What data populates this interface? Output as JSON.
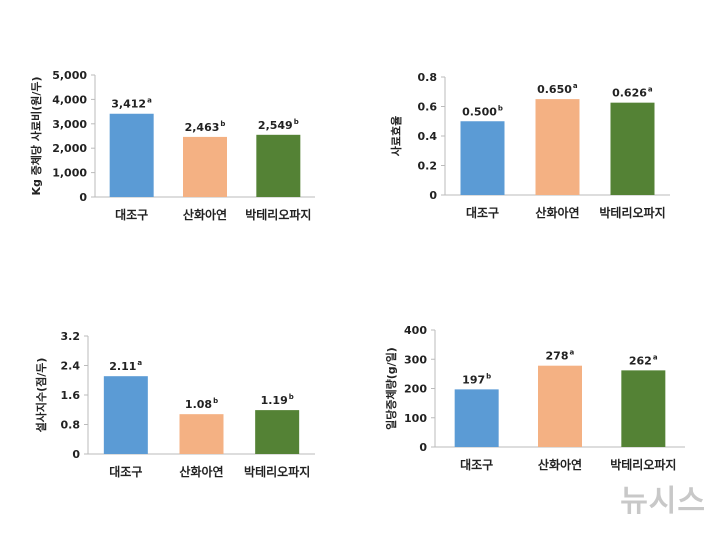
{
  "chart_data": [
    {
      "type": "bar",
      "ylabel": "Kg 증체당 사료비(원/두)",
      "categories": [
        "대조구",
        "산화아연",
        "박테리오파지"
      ],
      "values": [
        3412,
        2463,
        2549
      ],
      "value_labels": [
        "3,412",
        "2,463",
        "2,549"
      ],
      "superscripts": [
        "a",
        "b",
        "b"
      ],
      "ylim": [
        0,
        5000
      ],
      "yticks": [
        0,
        1000,
        2000,
        3000,
        4000,
        5000
      ],
      "ytick_labels": [
        "0",
        "1,000",
        "2,000",
        "3,000",
        "4,000",
        "5,000"
      ],
      "colors": [
        "#5b9bd5",
        "#f4b183",
        "#548235"
      ]
    },
    {
      "type": "bar",
      "ylabel": "사료효율",
      "categories": [
        "대조구",
        "산화아연",
        "박테리오파지"
      ],
      "values": [
        0.5,
        0.65,
        0.626
      ],
      "value_labels": [
        "0.500",
        "0.650",
        "0.626"
      ],
      "superscripts": [
        "b",
        "a",
        "a"
      ],
      "ylim": [
        0,
        0.8
      ],
      "yticks": [
        0,
        0.2,
        0.4,
        0.6,
        0.8
      ],
      "ytick_labels": [
        "0",
        "0.2",
        "0.4",
        "0.6",
        "0.8"
      ],
      "colors": [
        "#5b9bd5",
        "#f4b183",
        "#548235"
      ]
    },
    {
      "type": "bar",
      "ylabel": "설사지수(점/두)",
      "categories": [
        "대조구",
        "산화아연",
        "박테리오파지"
      ],
      "values": [
        2.11,
        1.08,
        1.19
      ],
      "value_labels": [
        "2.11",
        "1.08",
        "1.19"
      ],
      "superscripts": [
        "a",
        "b",
        "b"
      ],
      "ylim": [
        0,
        3.2
      ],
      "yticks": [
        0,
        0.8,
        1.6,
        2.4,
        3.2
      ],
      "ytick_labels": [
        "0",
        "0.8",
        "1.6",
        "2.4",
        "3.2"
      ],
      "colors": [
        "#5b9bd5",
        "#f4b183",
        "#548235"
      ]
    },
    {
      "type": "bar",
      "ylabel": "일당증체량(g/일)",
      "categories": [
        "대조구",
        "산화아연",
        "박테리오파지"
      ],
      "values": [
        197,
        278,
        262
      ],
      "value_labels": [
        "197",
        "278",
        "262"
      ],
      "superscripts": [
        "b",
        "a",
        "a"
      ],
      "ylim": [
        0,
        400
      ],
      "yticks": [
        0,
        100,
        200,
        300,
        400
      ],
      "ytick_labels": [
        "0",
        "100",
        "200",
        "300",
        "400"
      ],
      "colors": [
        "#5b9bd5",
        "#f4b183",
        "#548235"
      ]
    }
  ],
  "watermark": "뉴시스"
}
